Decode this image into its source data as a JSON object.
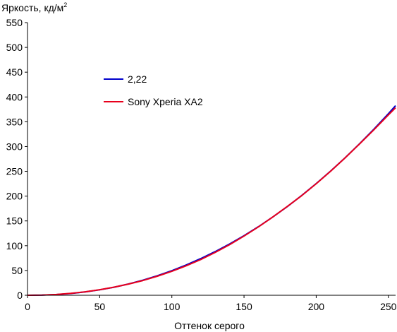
{
  "chart_data": {
    "type": "line",
    "title": "",
    "ylabel": "Яркость, кд/м",
    "ylabel_superscript": "2",
    "xlabel": "Оттенок серого",
    "xlim": [
      0,
      255
    ],
    "ylim": [
      0,
      550
    ],
    "x_ticks": [
      0,
      50,
      100,
      150,
      200,
      250
    ],
    "y_ticks": [
      0,
      50,
      100,
      150,
      200,
      250,
      300,
      350,
      400,
      450,
      500,
      550
    ],
    "grid": false,
    "legend_position": "upper-left inside plot",
    "series": [
      {
        "name": "2,22",
        "color": "#0000cc",
        "x": [
          0,
          10,
          20,
          30,
          40,
          50,
          60,
          70,
          80,
          90,
          100,
          110,
          120,
          130,
          140,
          150,
          160,
          170,
          180,
          190,
          200,
          210,
          220,
          230,
          240,
          250,
          255
        ],
        "y": [
          0,
          0.3,
          1.4,
          3.6,
          6.8,
          11.0,
          16.3,
          22.8,
          30.5,
          39.4,
          49.6,
          61.1,
          73.9,
          88.0,
          103.4,
          120.2,
          138.4,
          158.0,
          179.0,
          201.4,
          225.3,
          250.6,
          277.3,
          305.5,
          335.2,
          366.3,
          382.4
        ]
      },
      {
        "name": "Sony Xperia XA2",
        "color": "#e8001c",
        "x": [
          0,
          10,
          20,
          30,
          40,
          50,
          60,
          70,
          80,
          90,
          100,
          110,
          120,
          130,
          140,
          150,
          160,
          170,
          180,
          190,
          200,
          210,
          220,
          230,
          240,
          250,
          255
        ],
        "y": [
          0,
          0.3,
          1.5,
          3.8,
          7.0,
          11.2,
          16.4,
          22.6,
          29.8,
          38.5,
          48.3,
          59.6,
          72.0,
          86.4,
          102.0,
          119.4,
          137.9,
          158.0,
          179.2,
          201.0,
          225.0,
          250.2,
          277.2,
          305.0,
          333.8,
          363.7,
          378.3
        ]
      }
    ]
  }
}
